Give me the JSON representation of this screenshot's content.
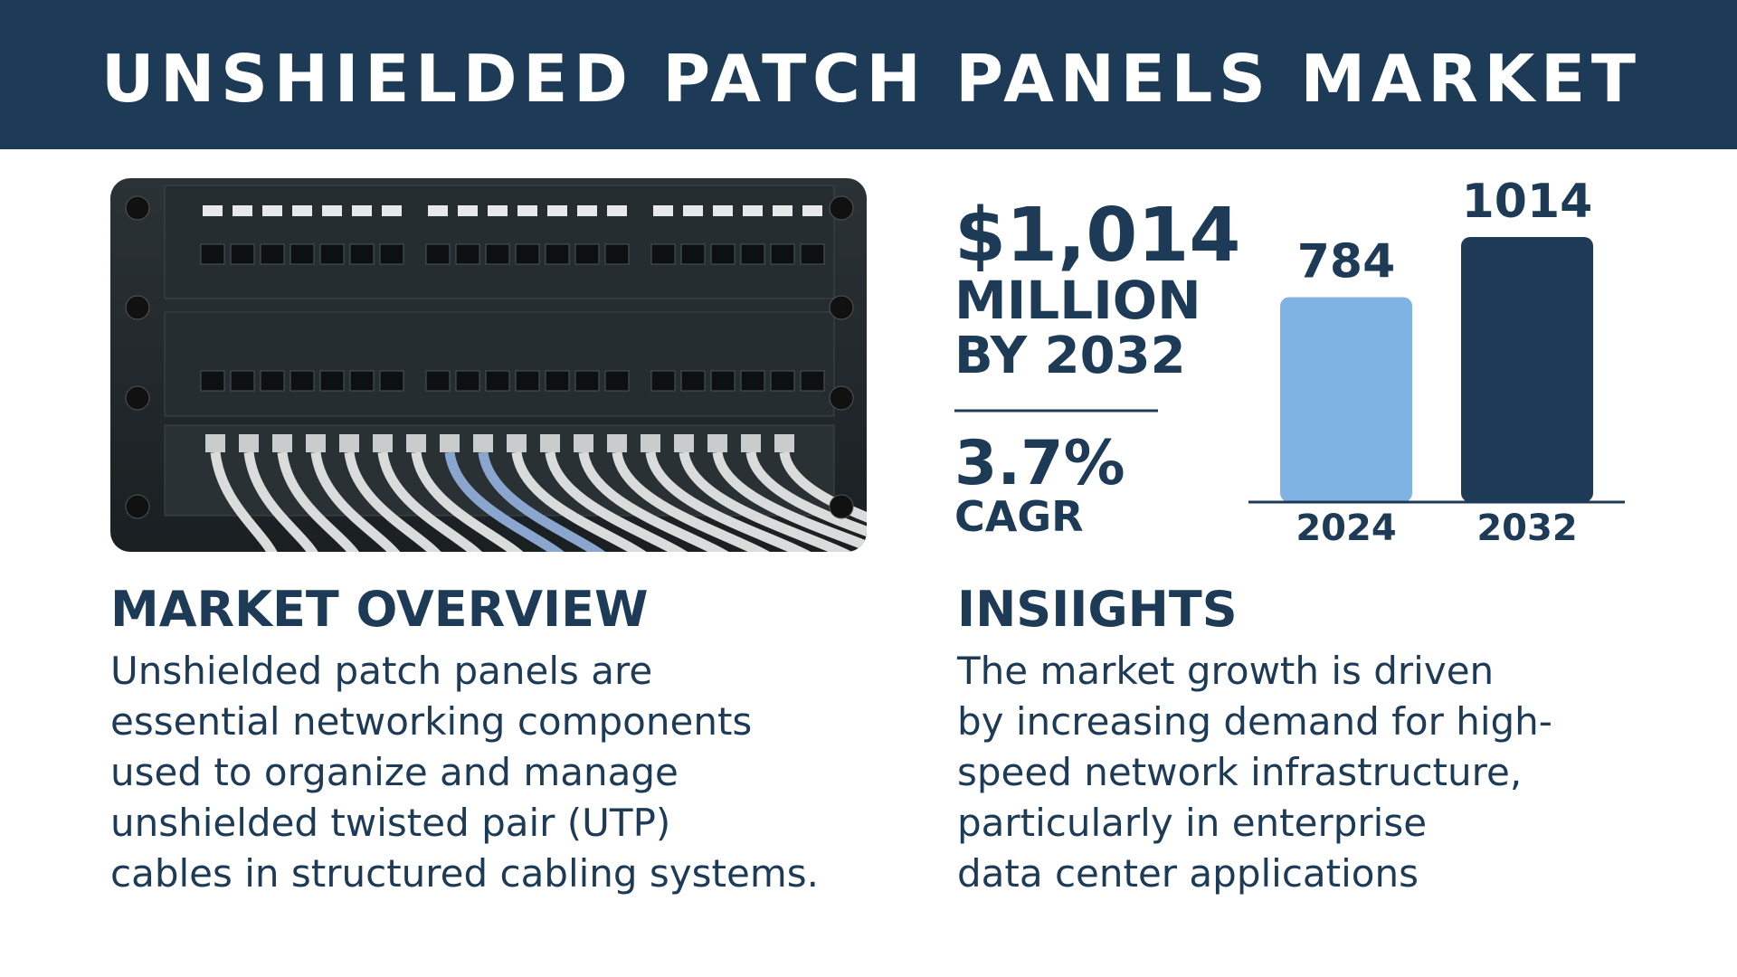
{
  "header": {
    "title": "UNSHIELDED PATCH PANELS MARKET"
  },
  "stats": {
    "value": "$1,014",
    "unit": "MILLION",
    "period": "BY 2032",
    "growth": "3.7%",
    "growth_label": "CAGR"
  },
  "chart_data": {
    "type": "bar",
    "categories": [
      "2024",
      "2032"
    ],
    "values": [
      784,
      1014
    ],
    "colors": [
      "#7fb3e3",
      "#1d3a56"
    ]
  },
  "overview": {
    "title": "MARKET OVERVIEW",
    "lines": [
      "Unshielded patch panels are",
      "essential networking components",
      "used to organize and manage",
      "unshielded twisted pair (UTP)",
      "cables in structured cabling systems."
    ]
  },
  "insights": {
    "title": "INSIIGHTS",
    "lines": [
      "The market growth is driven",
      "by increasing demand for high-",
      "speed network infrastructure,",
      "particularly in enterprise",
      "data center applications"
    ]
  }
}
